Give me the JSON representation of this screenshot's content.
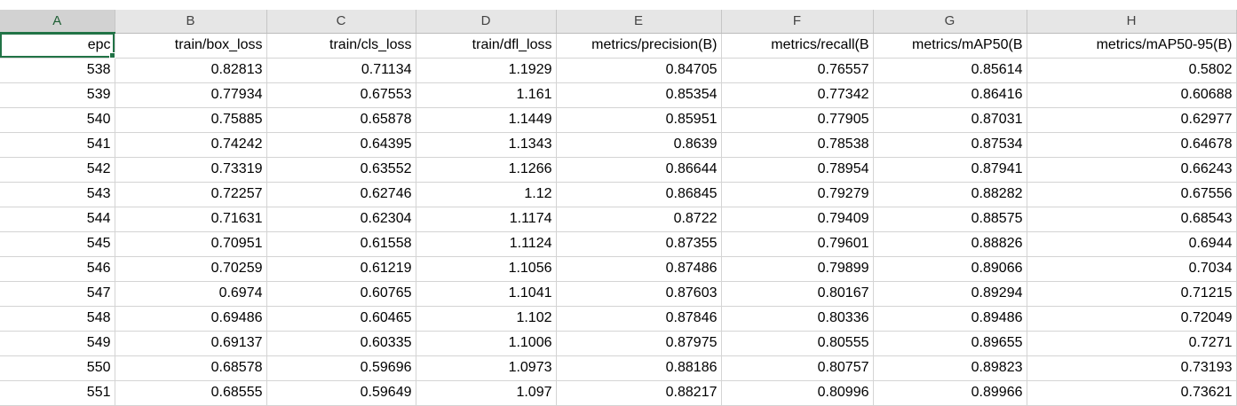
{
  "columns": [
    "A",
    "B",
    "C",
    "D",
    "E",
    "F",
    "G",
    "H"
  ],
  "header_row": [
    "epc",
    "train/box_loss",
    "train/cls_loss",
    "train/dfl_loss",
    "metrics/precision(B)",
    "metrics/recall(B",
    "metrics/mAP50(B",
    "metrics/mAP50-95(B)"
  ],
  "rows": [
    [
      "538",
      "0.82813",
      "0.71134",
      "1.1929",
      "0.84705",
      "0.76557",
      "0.85614",
      "0.5802"
    ],
    [
      "539",
      "0.77934",
      "0.67553",
      "1.161",
      "0.85354",
      "0.77342",
      "0.86416",
      "0.60688"
    ],
    [
      "540",
      "0.75885",
      "0.65878",
      "1.1449",
      "0.85951",
      "0.77905",
      "0.87031",
      "0.62977"
    ],
    [
      "541",
      "0.74242",
      "0.64395",
      "1.1343",
      "0.8639",
      "0.78538",
      "0.87534",
      "0.64678"
    ],
    [
      "542",
      "0.73319",
      "0.63552",
      "1.1266",
      "0.86644",
      "0.78954",
      "0.87941",
      "0.66243"
    ],
    [
      "543",
      "0.72257",
      "0.62746",
      "1.12",
      "0.86845",
      "0.79279",
      "0.88282",
      "0.67556"
    ],
    [
      "544",
      "0.71631",
      "0.62304",
      "1.1174",
      "0.8722",
      "0.79409",
      "0.88575",
      "0.68543"
    ],
    [
      "545",
      "0.70951",
      "0.61558",
      "1.1124",
      "0.87355",
      "0.79601",
      "0.88826",
      "0.6944"
    ],
    [
      "546",
      "0.70259",
      "0.61219",
      "1.1056",
      "0.87486",
      "0.79899",
      "0.89066",
      "0.7034"
    ],
    [
      "547",
      "0.6974",
      "0.60765",
      "1.1041",
      "0.87603",
      "0.80167",
      "0.89294",
      "0.71215"
    ],
    [
      "548",
      "0.69486",
      "0.60465",
      "1.102",
      "0.87846",
      "0.80336",
      "0.89486",
      "0.72049"
    ],
    [
      "549",
      "0.69137",
      "0.60335",
      "1.1006",
      "0.87975",
      "0.80555",
      "0.89655",
      "0.7271"
    ],
    [
      "550",
      "0.68578",
      "0.59696",
      "1.0973",
      "0.88186",
      "0.80757",
      "0.89823",
      "0.73193"
    ],
    [
      "551",
      "0.68555",
      "0.59649",
      "1.097",
      "0.88217",
      "0.80996",
      "0.89966",
      "0.73621"
    ]
  ],
  "selection": {
    "active_column": "A",
    "active_row": 0,
    "accent_color": "#217346"
  }
}
